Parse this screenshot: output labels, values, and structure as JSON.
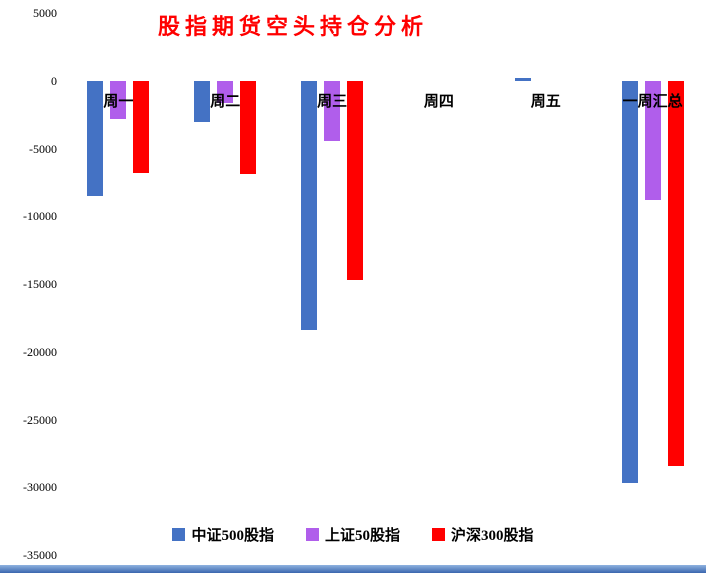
{
  "title": "股指期货空头持仓分析",
  "chart_data": {
    "type": "bar",
    "title": "股指期货空头持仓分析",
    "title_color": "#FF0000",
    "categories": [
      "周一",
      "周二",
      "周三",
      "周四",
      "周五",
      "一周汇总"
    ],
    "series": [
      {
        "name": "中证500股指",
        "color": "#4472C4",
        "values": [
          -8500,
          -3000,
          -18400,
          0,
          200,
          -29700
        ]
      },
      {
        "name": "上证50股指",
        "color": "#B05EEB",
        "values": [
          -2800,
          -1600,
          -4400,
          0,
          0,
          -8800
        ]
      },
      {
        "name": "沪深300股指",
        "color": "#FF0000",
        "values": [
          -6800,
          -6900,
          -14700,
          0,
          0,
          -28400
        ]
      }
    ],
    "ylim": [
      -35000,
      5000
    ],
    "ytick_interval": 5000,
    "yticks": [
      5000,
      0,
      -5000,
      -10000,
      -15000,
      -20000,
      -25000,
      -30000,
      -35000
    ],
    "legend_position": "bottom",
    "grid": false
  }
}
